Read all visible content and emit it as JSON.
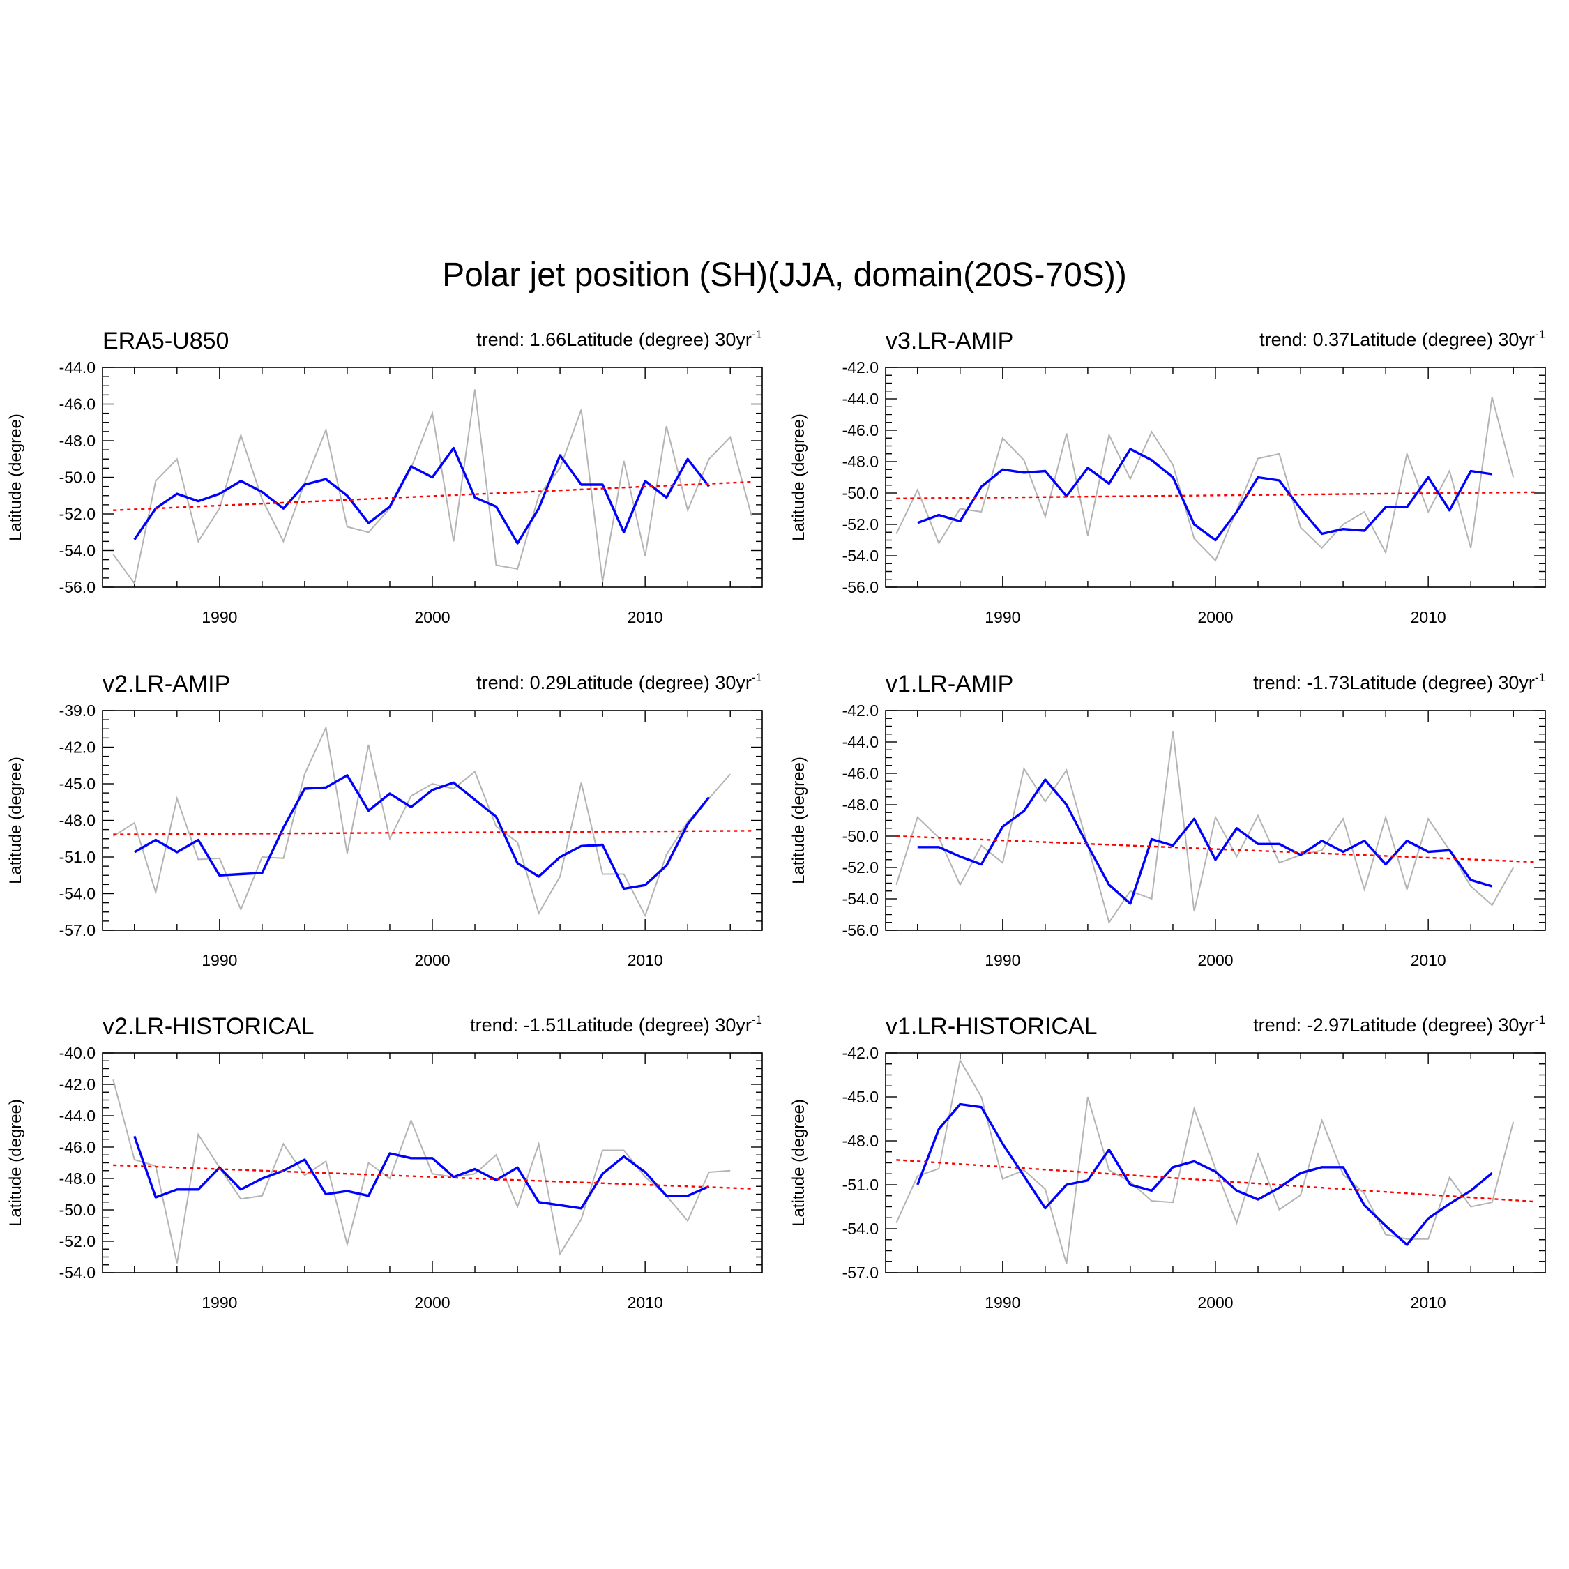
{
  "title": "Polar jet position (SH)(JJA, domain(20S-70S))",
  "chart_data": [
    {
      "type": "line",
      "panel_title": "ERA5-U850",
      "trend_prefix": "trend: 1.66Latitude (degree) 30yr",
      "trend_sup": "-1",
      "ylabel": "Latitude (degree)",
      "xlim": [
        1984.5,
        2015.5
      ],
      "ylim": [
        -56,
        -44
      ],
      "yticks": [
        -56,
        -54,
        -52,
        -50,
        -48,
        -46,
        -44
      ],
      "ytick_labels": [
        "-56.0",
        "-54.0",
        "-52.0",
        "-50.0",
        "-48.0",
        "-46.0",
        "-44.0"
      ],
      "xticks": [
        1990,
        2000,
        2010
      ],
      "xtick_labels": [
        "1990",
        "2000",
        "2010"
      ],
      "years": [
        1985,
        1986,
        1987,
        1988,
        1989,
        1990,
        1991,
        1992,
        1993,
        1994,
        1995,
        1996,
        1997,
        1998,
        1999,
        2000,
        2001,
        2002,
        2003,
        2004,
        2005,
        2006,
        2007,
        2008,
        2009,
        2010,
        2011,
        2012,
        2013,
        2014,
        2015
      ],
      "series": [
        {
          "values": [
            -54.2,
            -55.8,
            -50.2,
            -49.0,
            -53.5,
            -51.7,
            -47.7,
            -51.2,
            -53.5,
            -50.3,
            -47.4,
            -52.7,
            -53.0,
            -51.7,
            -49.5,
            -46.5,
            -53.5,
            -45.2,
            -54.8,
            -55.0,
            -51.0,
            -49.5,
            -46.3,
            -55.7,
            -49.1,
            -54.3,
            -47.2,
            -51.8,
            -49.0,
            -47.8,
            -52.1
          ]
        },
        {
          "values": [
            null,
            -53.4,
            -51.7,
            -50.9,
            -51.3,
            -50.9,
            -50.2,
            -50.8,
            -51.7,
            -50.4,
            -50.1,
            -51.0,
            -52.5,
            -51.6,
            -49.4,
            -50.0,
            -48.4,
            -51.1,
            -51.6,
            -53.6,
            -51.7,
            -48.8,
            -50.4,
            -50.4,
            -53.0,
            -50.2,
            -51.1,
            -49.0,
            -50.5,
            null,
            null
          ]
        },
        {
          "values": [
            -51.8,
            -50.25
          ]
        }
      ]
    },
    {
      "type": "line",
      "panel_title": "v3.LR-AMIP",
      "trend_prefix": "trend: 0.37Latitude (degree) 30yr",
      "trend_sup": "-1",
      "ylabel": "Latitude (degree)",
      "xlim": [
        1984.5,
        2015.5
      ],
      "ylim": [
        -56,
        -42
      ],
      "yticks": [
        -56,
        -54,
        -52,
        -50,
        -48,
        -46,
        -44,
        -42
      ],
      "ytick_labels": [
        "-56.0",
        "-54.0",
        "-52.0",
        "-50.0",
        "-48.0",
        "-46.0",
        "-44.0",
        "-42.0"
      ],
      "xticks": [
        1990,
        2000,
        2010
      ],
      "xtick_labels": [
        "1990",
        "2000",
        "2010"
      ],
      "years": [
        1985,
        1986,
        1987,
        1988,
        1989,
        1990,
        1991,
        1992,
        1993,
        1994,
        1995,
        1996,
        1997,
        1998,
        1999,
        2000,
        2001,
        2002,
        2003,
        2004,
        2005,
        2006,
        2007,
        2008,
        2009,
        2010,
        2011,
        2012,
        2013,
        2014,
        2015
      ],
      "series": [
        {
          "values": [
            -52.6,
            -49.8,
            -53.2,
            -51.0,
            -51.2,
            -46.5,
            -47.9,
            -51.5,
            -46.2,
            -52.7,
            -46.3,
            -49.1,
            -46.1,
            -48.2,
            -52.9,
            -54.3,
            -51.1,
            -47.8,
            -47.5,
            -52.2,
            -53.5,
            -52.0,
            -51.2,
            -53.8,
            -47.5,
            -51.2,
            -48.6,
            -53.5,
            -43.9,
            -49.0,
            null
          ]
        },
        {
          "values": [
            null,
            -51.9,
            -51.4,
            -51.8,
            -49.6,
            -48.5,
            -48.7,
            -48.6,
            -50.2,
            -48.4,
            -49.4,
            -47.2,
            -47.9,
            -49.0,
            -52.0,
            -53.0,
            -51.2,
            -49.0,
            -49.2,
            -51.0,
            -52.6,
            -52.3,
            -52.4,
            -50.9,
            -50.9,
            -49.0,
            -51.1,
            -48.6,
            -48.8,
            null,
            null
          ]
        },
        {
          "values": [
            -50.35,
            -49.95
          ]
        }
      ]
    },
    {
      "type": "line",
      "panel_title": "v2.LR-AMIP",
      "trend_prefix": "trend: 0.29Latitude (degree) 30yr",
      "trend_sup": "-1",
      "ylabel": "Latitude (degree)",
      "xlim": [
        1984.5,
        2015.5
      ],
      "ylim": [
        -57,
        -39
      ],
      "yticks": [
        -57,
        -54,
        -51,
        -48,
        -45,
        -42,
        -39
      ],
      "ytick_labels": [
        "-57.0",
        "-54.0",
        "-51.0",
        "-48.0",
        "-45.0",
        "-42.0",
        "-39.0"
      ],
      "xticks": [
        1990,
        2000,
        2010
      ],
      "xtick_labels": [
        "1990",
        "2000",
        "2010"
      ],
      "years": [
        1985,
        1986,
        1987,
        1988,
        1989,
        1990,
        1991,
        1992,
        1993,
        1994,
        1995,
        1996,
        1997,
        1998,
        1999,
        2000,
        2001,
        2002,
        2003,
        2004,
        2005,
        2006,
        2007,
        2008,
        2009,
        2010,
        2011,
        2012,
        2013,
        2014,
        2015
      ],
      "series": [
        {
          "values": [
            -49.3,
            -48.2,
            -53.9,
            -46.2,
            -51.2,
            -51.1,
            -55.3,
            -51.0,
            -51.1,
            -44.2,
            -40.4,
            -50.7,
            -41.8,
            -49.5,
            -46.0,
            -45.0,
            -45.4,
            -44.0,
            -48.5,
            -49.8,
            -55.6,
            -52.6,
            -44.9,
            -52.4,
            -52.4,
            -55.8,
            -50.8,
            -48.1,
            -46.2,
            -44.2,
            null
          ]
        },
        {
          "values": [
            null,
            -50.6,
            -49.6,
            -50.6,
            -49.6,
            -52.5,
            -52.4,
            -52.3,
            -48.6,
            -45.4,
            -45.3,
            -44.3,
            -47.2,
            -45.8,
            -46.9,
            -45.5,
            -44.9,
            -46.3,
            -47.7,
            -51.5,
            -52.6,
            -51.0,
            -50.1,
            -50.0,
            -53.6,
            -53.3,
            -51.7,
            -48.3,
            -46.1,
            null,
            null
          ]
        },
        {
          "values": [
            -49.15,
            -48.85
          ]
        }
      ]
    },
    {
      "type": "line",
      "panel_title": "v1.LR-AMIP",
      "trend_prefix": "trend: -1.73Latitude (degree) 30yr",
      "trend_sup": "-1",
      "ylabel": "Latitude (degree)",
      "xlim": [
        1984.5,
        2015.5
      ],
      "ylim": [
        -56,
        -42
      ],
      "yticks": [
        -56,
        -54,
        -52,
        -50,
        -48,
        -46,
        -44,
        -42
      ],
      "ytick_labels": [
        "-56.0",
        "-54.0",
        "-52.0",
        "-50.0",
        "-48.0",
        "-46.0",
        "-44.0",
        "-42.0"
      ],
      "xticks": [
        1990,
        2000,
        2010
      ],
      "xtick_labels": [
        "1990",
        "2000",
        "2010"
      ],
      "years": [
        1985,
        1986,
        1987,
        1988,
        1989,
        1990,
        1991,
        1992,
        1993,
        1994,
        1995,
        1996,
        1997,
        1998,
        1999,
        2000,
        2001,
        2002,
        2003,
        2004,
        2005,
        2006,
        2007,
        2008,
        2009,
        2010,
        2011,
        2012,
        2013,
        2014,
        2015
      ],
      "series": [
        {
          "values": [
            -53.1,
            -48.8,
            -50.1,
            -53.1,
            -50.6,
            -51.7,
            -45.7,
            -47.8,
            -45.8,
            -50.6,
            -55.5,
            -53.5,
            -54.0,
            -43.3,
            -54.8,
            -48.8,
            -51.3,
            -48.7,
            -51.7,
            -51.2,
            -50.9,
            -48.9,
            -53.4,
            -48.8,
            -53.4,
            -48.9,
            -50.9,
            -53.2,
            -54.4,
            -52.0,
            null
          ]
        },
        {
          "values": [
            null,
            -50.7,
            -50.7,
            -51.3,
            -51.8,
            -49.4,
            -48.4,
            -46.4,
            -48.0,
            -50.6,
            -53.1,
            -54.3,
            -50.2,
            -50.6,
            -48.9,
            -51.5,
            -49.5,
            -50.5,
            -50.5,
            -51.2,
            -50.3,
            -51.0,
            -50.3,
            -51.8,
            -50.3,
            -51.0,
            -50.9,
            -52.8,
            -53.2,
            null,
            null
          ]
        },
        {
          "values": [
            -50.0,
            -51.65
          ]
        }
      ]
    },
    {
      "type": "line",
      "panel_title": "v2.LR-HISTORICAL",
      "trend_prefix": "trend: -1.51Latitude (degree) 30yr",
      "trend_sup": "-1",
      "ylabel": "Latitude (degree)",
      "xlim": [
        1984.5,
        2015.5
      ],
      "ylim": [
        -54,
        -40
      ],
      "yticks": [
        -54,
        -52,
        -50,
        -48,
        -46,
        -44,
        -42,
        -40
      ],
      "ytick_labels": [
        "-54.0",
        "-52.0",
        "-50.0",
        "-48.0",
        "-46.0",
        "-44.0",
        "-42.0",
        "-40.0"
      ],
      "xticks": [
        1990,
        2000,
        2010
      ],
      "xtick_labels": [
        "1990",
        "2000",
        "2010"
      ],
      "years": [
        1985,
        1986,
        1987,
        1988,
        1989,
        1990,
        1991,
        1992,
        1993,
        1994,
        1995,
        1996,
        1997,
        1998,
        1999,
        2000,
        2001,
        2002,
        2003,
        2004,
        2005,
        2006,
        2007,
        2008,
        2009,
        2010,
        2011,
        2012,
        2013,
        2014,
        2015
      ],
      "series": [
        {
          "values": [
            -41.7,
            -46.8,
            -47.2,
            -53.4,
            -45.2,
            -47.3,
            -49.3,
            -49.1,
            -45.8,
            -47.8,
            -46.9,
            -52.2,
            -47.0,
            -48.0,
            -44.3,
            -47.7,
            -47.9,
            -47.7,
            -46.5,
            -49.8,
            -45.8,
            -52.8,
            -50.6,
            -46.2,
            -46.2,
            -47.9,
            -49.1,
            -50.7,
            -47.6,
            -47.5,
            null
          ]
        },
        {
          "values": [
            null,
            -45.3,
            -49.2,
            -48.7,
            -48.7,
            -47.3,
            -48.7,
            -48.0,
            -47.5,
            -46.8,
            -49.0,
            -48.8,
            -49.1,
            -46.4,
            -46.7,
            -46.7,
            -47.9,
            -47.4,
            -48.1,
            -47.3,
            -49.5,
            -49.7,
            -49.9,
            -47.7,
            -46.6,
            -47.6,
            -49.1,
            -49.1,
            -48.5,
            null,
            null
          ]
        },
        {
          "values": [
            -47.15,
            -48.65
          ]
        }
      ]
    },
    {
      "type": "line",
      "panel_title": "v1.LR-HISTORICAL",
      "trend_prefix": "trend: -2.97Latitude (degree) 30yr",
      "trend_sup": "-1",
      "ylabel": "Latitude (degree)",
      "xlim": [
        1984.5,
        2015.5
      ],
      "ylim": [
        -57,
        -42
      ],
      "yticks": [
        -57,
        -54,
        -51,
        -48,
        -45,
        -42
      ],
      "ytick_labels": [
        "-57.0",
        "-54.0",
        "-51.0",
        "-48.0",
        "-45.0",
        "-42.0"
      ],
      "xticks": [
        1990,
        2000,
        2010
      ],
      "xtick_labels": [
        "1990",
        "2000",
        "2010"
      ],
      "years": [
        1985,
        1986,
        1987,
        1988,
        1989,
        1990,
        1991,
        1992,
        1993,
        1994,
        1995,
        1996,
        1997,
        1998,
        1999,
        2000,
        2001,
        2002,
        2003,
        2004,
        2005,
        2006,
        2007,
        2008,
        2009,
        2010,
        2011,
        2012,
        2013,
        2014,
        2015
      ],
      "series": [
        {
          "values": [
            -53.6,
            -50.4,
            -49.9,
            -42.5,
            -45.0,
            -50.6,
            -50.0,
            -51.3,
            -56.4,
            -45.0,
            -50.0,
            -50.8,
            -52.1,
            -52.2,
            -45.8,
            -49.9,
            -53.6,
            -48.9,
            -52.7,
            -51.7,
            -46.6,
            -50.3,
            -51.6,
            -54.4,
            -54.7,
            -54.7,
            -50.5,
            -52.5,
            -52.2,
            -46.7,
            null
          ]
        },
        {
          "values": [
            null,
            -51.0,
            -47.2,
            -45.5,
            -45.7,
            -48.2,
            -50.4,
            -52.6,
            -51.0,
            -50.7,
            -48.6,
            -51.0,
            -51.4,
            -49.8,
            -49.4,
            -50.1,
            -51.4,
            -52.0,
            -51.2,
            -50.2,
            -49.8,
            -49.8,
            -52.4,
            -53.8,
            -55.1,
            -53.3,
            -52.3,
            -51.4,
            -50.2,
            null,
            null
          ]
        },
        {
          "values": [
            -49.3,
            -52.15
          ]
        }
      ]
    }
  ]
}
